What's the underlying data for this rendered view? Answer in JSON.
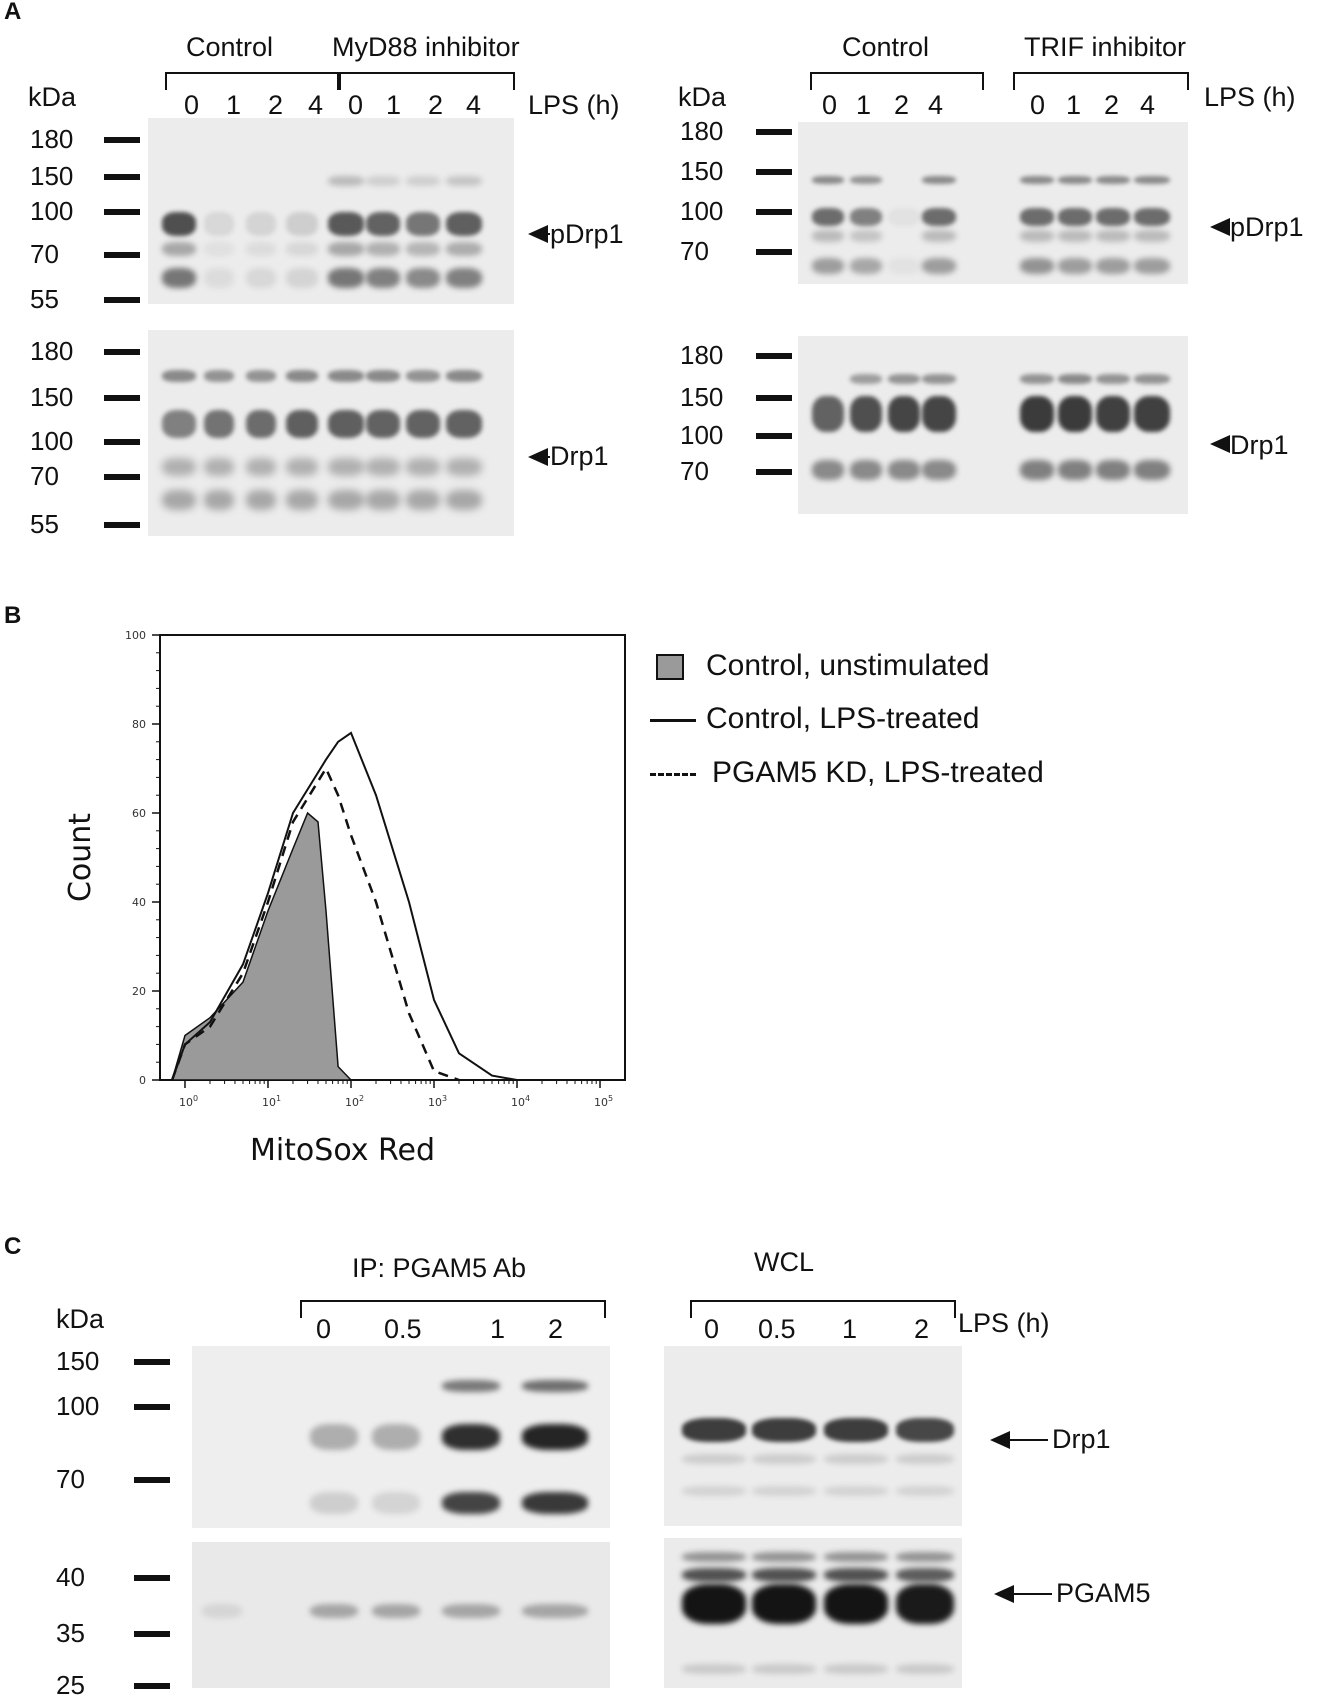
{
  "panel_a": {
    "label": "A",
    "left": {
      "groups": [
        "Control",
        "MyD88 inhibitor"
      ],
      "lanes": [
        "0",
        "1",
        "2",
        "4",
        "0",
        "1",
        "2",
        "4"
      ],
      "time_label": "LPS (h)",
      "kda_label": "kDa",
      "top_markers": [
        "180",
        "150",
        "100",
        "70",
        "55"
      ],
      "bottom_markers": [
        "180",
        "150",
        "100",
        "70",
        "55"
      ],
      "top_band": "pDrp1",
      "bottom_band": "Drp1"
    },
    "right": {
      "groups": [
        "Control",
        "TRIF inhibitor"
      ],
      "lanes": [
        "0",
        "1",
        "2",
        "4",
        "0",
        "1",
        "2",
        "4"
      ],
      "time_label": "LPS (h)",
      "kda_label": "kDa",
      "top_markers": [
        "180",
        "150",
        "100",
        "70"
      ],
      "bottom_markers": [
        "180",
        "150",
        "100",
        "70"
      ],
      "top_band": "pDrp1",
      "bottom_band": "Drp1"
    }
  },
  "panel_b": {
    "label": "B",
    "xlabel": "MitoSox Red",
    "ylabel": "Count",
    "legend": [
      {
        "name": "Control, unstimulated",
        "style": "filled-gray"
      },
      {
        "name": "Control, LPS-treated",
        "style": "solid"
      },
      {
        "name": "PGAM5 KD, LPS-treated",
        "style": "dashed"
      }
    ]
  },
  "chart_data": {
    "type": "area",
    "title": "",
    "xlabel": "MitoSox Red",
    "ylabel": "Count",
    "x_scale": "log",
    "xlim": [
      0.5,
      200000
    ],
    "ylim": [
      0,
      100
    ],
    "x_ticks": [
      "10^0",
      "10^1",
      "10^2",
      "10^3",
      "10^4",
      "10^5"
    ],
    "y_ticks": [
      "0",
      "20",
      "40",
      "60",
      "80",
      "100"
    ],
    "legend_position": "top-right",
    "series": [
      {
        "name": "Control, unstimulated",
        "x": [
          0.7,
          1,
          2,
          5,
          10,
          20,
          30,
          40,
          50,
          70,
          100
        ],
        "y": [
          0,
          10,
          14,
          22,
          38,
          52,
          60,
          58,
          38,
          3,
          0
        ]
      },
      {
        "name": "Control, LPS-treated",
        "x": [
          0.7,
          1,
          2,
          5,
          10,
          20,
          50,
          70,
          100,
          200,
          500,
          1000,
          2000,
          5000,
          10000
        ],
        "y": [
          0,
          8,
          13,
          26,
          42,
          60,
          72,
          76,
          78,
          64,
          40,
          18,
          6,
          1,
          0
        ]
      },
      {
        "name": "PGAM5 KD, LPS-treated",
        "x": [
          0.7,
          1,
          2,
          5,
          10,
          20,
          50,
          70,
          100,
          200,
          500,
          1000,
          2000
        ],
        "y": [
          0,
          8,
          12,
          24,
          40,
          58,
          70,
          64,
          55,
          40,
          15,
          2,
          0
        ]
      }
    ]
  },
  "panel_c": {
    "label": "C",
    "ip": {
      "title": "IP: PGAM5 Ab",
      "lanes": [
        "0",
        "0.5",
        "1",
        "2"
      ],
      "kda_label": "kDa",
      "top_markers": [
        "150",
        "100",
        "70"
      ],
      "bottom_markers": [
        "40",
        "35",
        "25"
      ]
    },
    "wcl": {
      "title": "WCL",
      "lanes": [
        "0",
        "0.5",
        "1",
        "2"
      ],
      "time_label": "LPS (h)",
      "top_band": "Drp1",
      "bottom_band": "PGAM5"
    }
  }
}
